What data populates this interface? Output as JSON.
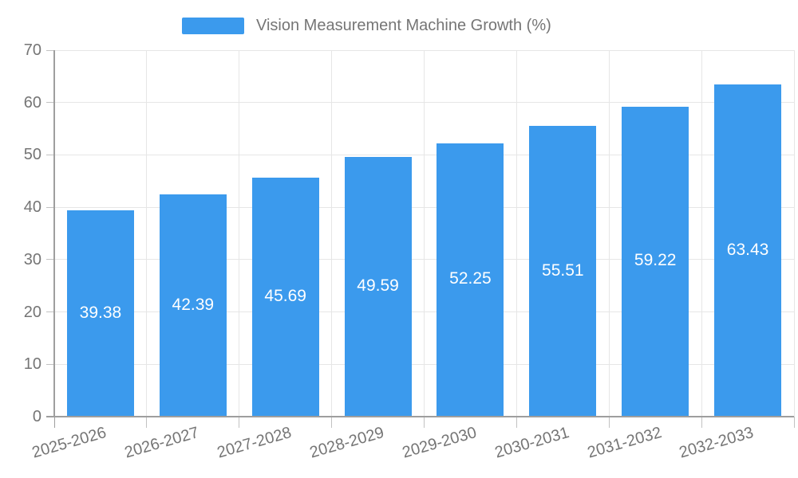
{
  "legend": {
    "label": "Vision Measurement Machine Growth (%)"
  },
  "chart_data": {
    "type": "bar",
    "title": "Vision Measurement Machine Growth (%)",
    "categories": [
      "2025-2026",
      "2026-2027",
      "2027-2028",
      "2028-2029",
      "2029-2030",
      "2030-2031",
      "2031-2032",
      "2032-2033"
    ],
    "values": [
      39.38,
      42.39,
      45.69,
      49.59,
      52.25,
      55.51,
      59.22,
      63.43
    ],
    "value_labels": [
      "39.38",
      "42.39",
      "45.69",
      "49.59",
      "52.25",
      "55.51",
      "59.22",
      "63.43"
    ],
    "xlabel": "",
    "ylabel": "",
    "ylim": [
      0,
      70
    ],
    "yticks": [
      0,
      10,
      20,
      30,
      40,
      50,
      60,
      70
    ],
    "grid": true,
    "legend_position": "top",
    "colors": {
      "bar": "#3B9AED",
      "value_label_text": "#ffffff",
      "axis_text": "#757575",
      "gridline": "#e6e6e6",
      "axis_line": "#9e9e9e",
      "tick_mark": "#c2c2c2"
    }
  }
}
